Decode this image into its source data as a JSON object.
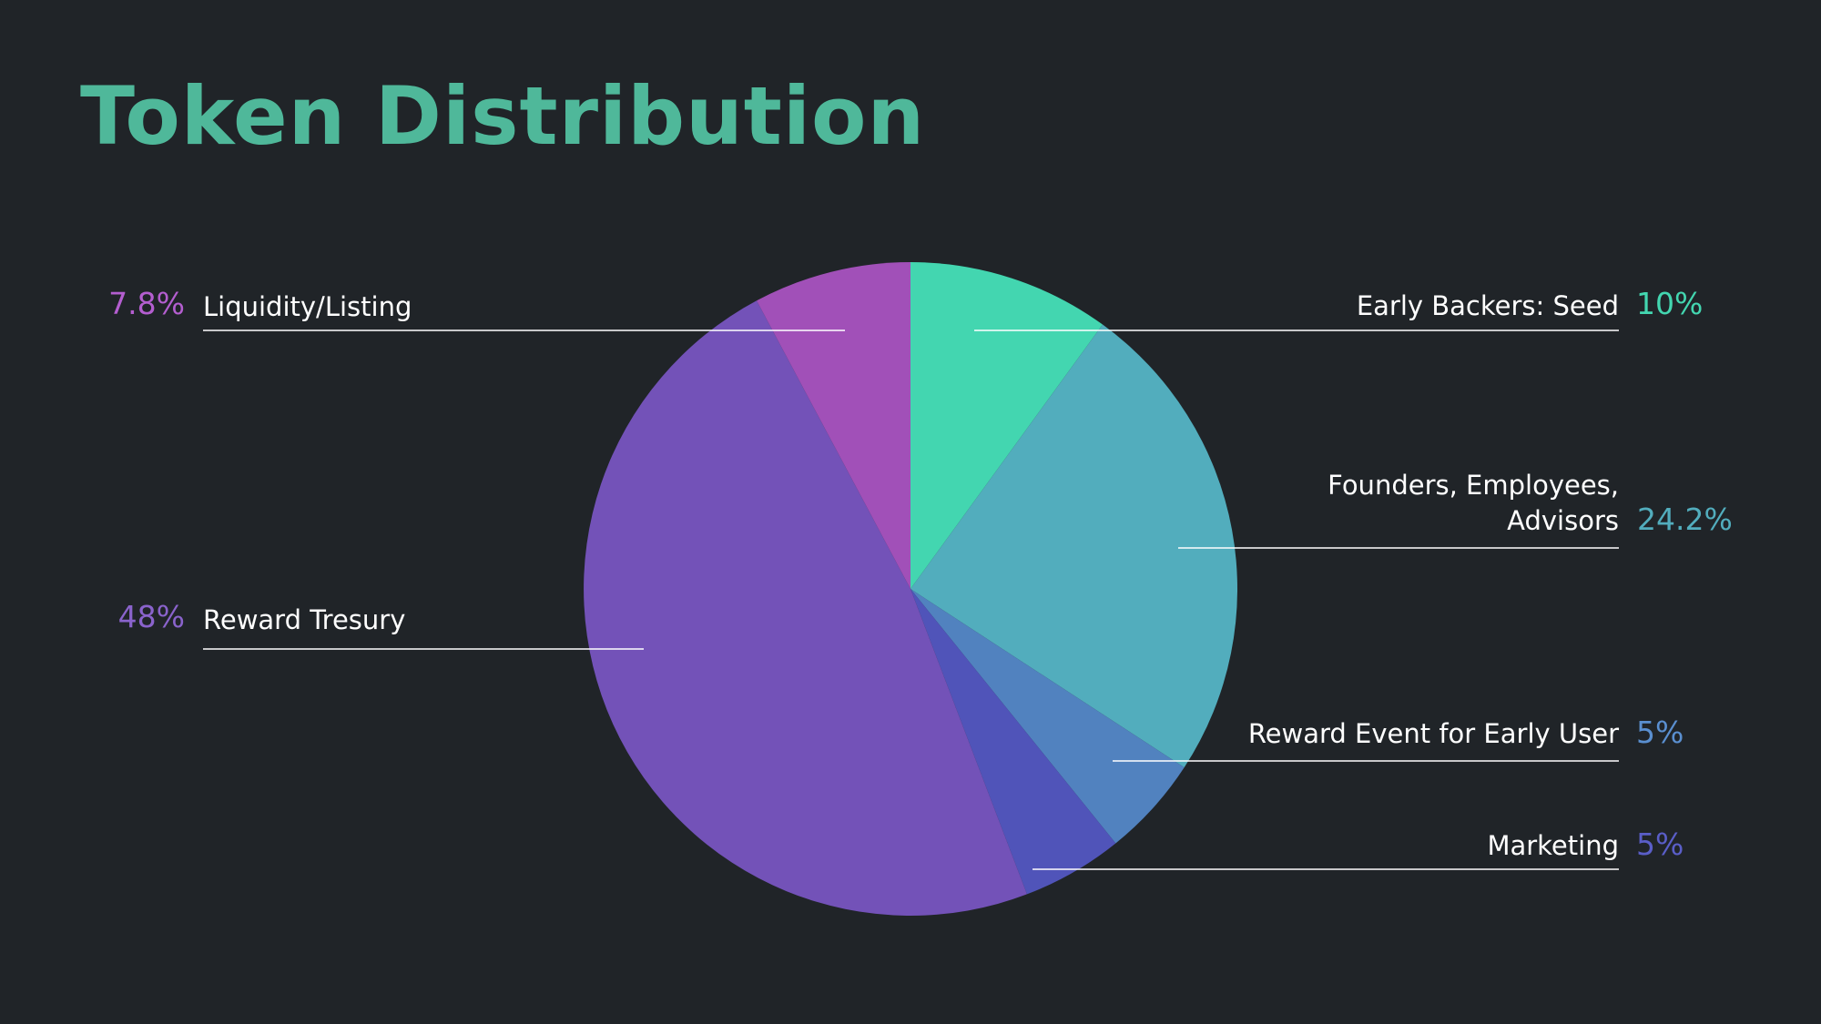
{
  "page": {
    "title": "Token Distribution"
  },
  "chart_data": {
    "type": "pie",
    "title": "Token Distribution",
    "start_angle_deg": 0,
    "direction": "clockwise",
    "slices": [
      {
        "label": "Early Backers: Seed",
        "value": 10,
        "display": "10%",
        "color": "#43d6b0",
        "label_color": "#43d6b0"
      },
      {
        "label": "Founders, Employees, Advisors",
        "label_lines": [
          "Founders, Employees,",
          "Advisors"
        ],
        "value": 24.2,
        "display": "24.2%",
        "color": "#52adbd",
        "label_color": "#52adbd"
      },
      {
        "label": "Reward Event for Early User",
        "value": 5,
        "display": "5%",
        "color": "#5182bf",
        "label_color": "#5a8fd0"
      },
      {
        "label": "Marketing",
        "value": 5,
        "display": "5%",
        "color": "#5054b9",
        "label_color": "#5a5ec8"
      },
      {
        "label": "Reward Tresury",
        "value": 48,
        "display": "48%",
        "color": "#7352b8",
        "label_color": "#8a63cc"
      },
      {
        "label": "Liquidity/Listing",
        "value": 7.8,
        "display": "7.8%",
        "color": "#a150b8",
        "label_color": "#b45ed0"
      }
    ]
  }
}
